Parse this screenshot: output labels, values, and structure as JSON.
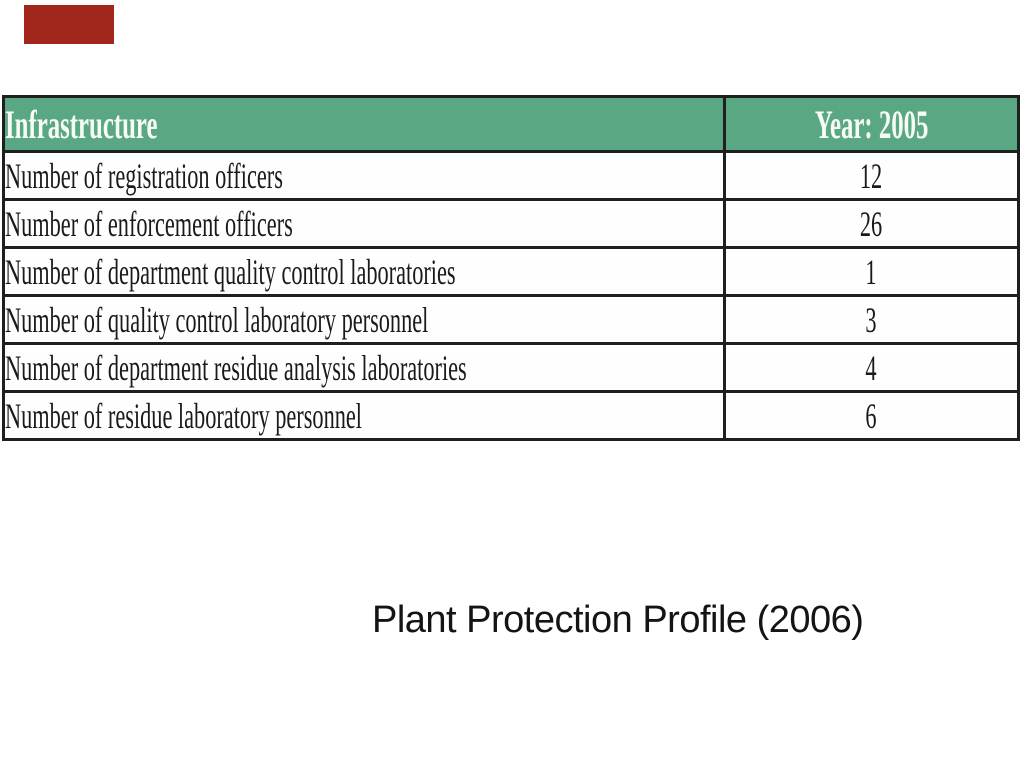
{
  "accent": {
    "color": "#A1261B"
  },
  "table": {
    "header_bg": "#5aa883",
    "header_text_color": "#f6fbf4",
    "border_color": "#1f1f1f",
    "columns": [
      "Infrastructure",
      "Year: 2005"
    ],
    "rows": [
      {
        "label": "Number of registration officers",
        "value": "12"
      },
      {
        "label": "Number of enforcement officers",
        "value": "26"
      },
      {
        "label": "Number of department quality control laboratories",
        "value": "1"
      },
      {
        "label": "Number of quality control laboratory personnel",
        "value": "3"
      },
      {
        "label": "Number of department residue analysis laboratories",
        "value": "4"
      },
      {
        "label": "Number of residue laboratory personnel",
        "value": "6"
      }
    ]
  },
  "caption": "Plant Protection Profile (2006)"
}
